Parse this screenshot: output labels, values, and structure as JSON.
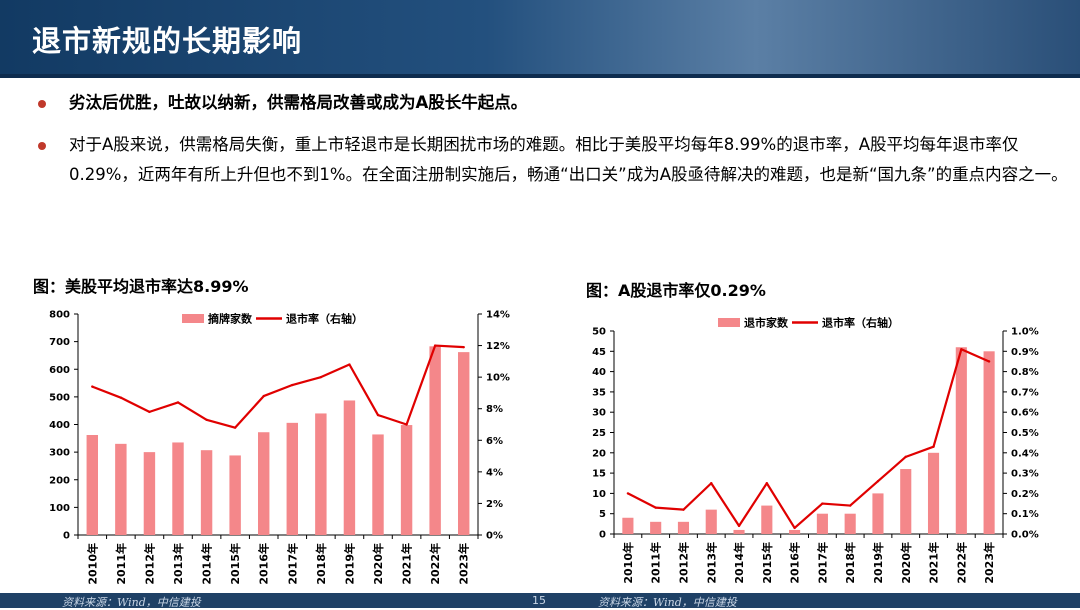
{
  "slide": {
    "title": "退市新规的长期影响",
    "bullets": [
      "劣汰后优胜，吐故以纳新，供需格局改善或成为A股长牛起点。",
      "对于A股来说，供需格局失衡，重上市轻退市是长期困扰市场的难题。相比于美股平均每年8.99%的退市率，A股平均每年退市率仅0.29%，近两年有所上升但也不到1%。在全面注册制实施后，畅通“出口关”成为A股亟待解决的难题，也是新“国九条”的重点内容之一。"
    ],
    "source_left": "资料来源：Wind，中信建投",
    "source_right": "资料来源：Wind，中信建投",
    "page_number": "15"
  },
  "colors": {
    "bar": "#f4878a",
    "line": "#e00000",
    "header": "#1f4166",
    "bullet_dot": "#c0392b"
  },
  "chart_data": [
    {
      "type": "bar",
      "title": "图：美股平均退市率达8.99%",
      "categories": [
        "2010年",
        "2011年",
        "2012年",
        "2013年",
        "2014年",
        "2015年",
        "2016年",
        "2017年",
        "2018年",
        "2019年",
        "2020年",
        "2021年",
        "2022年",
        "2023年"
      ],
      "series": [
        {
          "name": "摘牌家数",
          "type": "bar",
          "axis": "left",
          "values": [
            362,
            330,
            300,
            335,
            307,
            288,
            372,
            406,
            440,
            487,
            364,
            398,
            683,
            662
          ]
        },
        {
          "name": "退市率（右轴）",
          "type": "line",
          "axis": "right",
          "values": [
            9.4,
            8.7,
            7.8,
            8.4,
            7.3,
            6.8,
            8.8,
            9.5,
            10.0,
            10.8,
            7.6,
            7.0,
            12.0,
            11.9
          ]
        }
      ],
      "ylim": [
        0,
        800
      ],
      "yticks": [
        "0",
        "100",
        "200",
        "300",
        "400",
        "500",
        "600",
        "700",
        "800"
      ],
      "y2lim": [
        0,
        14
      ],
      "y2ticks": [
        "0%",
        "2%",
        "4%",
        "6%",
        "8%",
        "10%",
        "12%",
        "14%"
      ],
      "legend": "top-center"
    },
    {
      "type": "bar",
      "title": "图：A股退市率仅0.29%",
      "categories": [
        "2010年",
        "2011年",
        "2012年",
        "2013年",
        "2014年",
        "2015年",
        "2016年",
        "2017年",
        "2018年",
        "2019年",
        "2020年",
        "2021年",
        "2022年",
        "2023年"
      ],
      "series": [
        {
          "name": "退市家数",
          "type": "bar",
          "axis": "left",
          "values": [
            4,
            3,
            3,
            6,
            1,
            7,
            1,
            5,
            5,
            10,
            16,
            20,
            46,
            45
          ]
        },
        {
          "name": "退市率（右轴）",
          "type": "line",
          "axis": "right",
          "values": [
            0.2,
            0.13,
            0.12,
            0.25,
            0.04,
            0.25,
            0.03,
            0.15,
            0.14,
            0.26,
            0.38,
            0.43,
            0.91,
            0.85
          ]
        }
      ],
      "ylim": [
        0,
        50
      ],
      "yticks": [
        "0",
        "5",
        "10",
        "15",
        "20",
        "25",
        "30",
        "35",
        "40",
        "45",
        "50"
      ],
      "y2lim": [
        0,
        1.0
      ],
      "y2ticks": [
        "0.0%",
        "0.1%",
        "0.2%",
        "0.3%",
        "0.4%",
        "0.5%",
        "0.6%",
        "0.7%",
        "0.8%",
        "0.9%",
        "1.0%"
      ],
      "legend": "top-center"
    }
  ]
}
